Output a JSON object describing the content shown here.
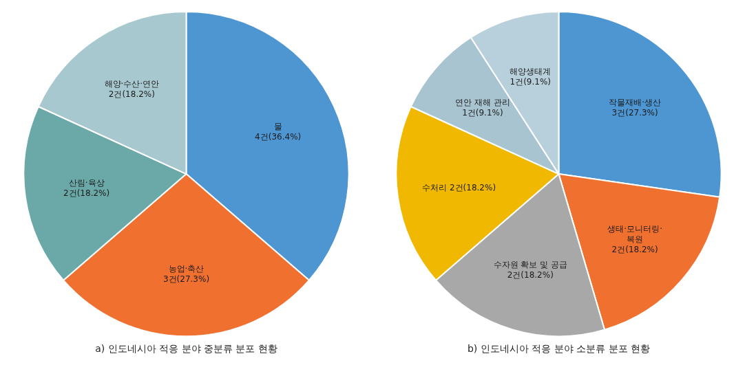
{
  "chart_data": [
    {
      "type": "pie",
      "subtitle": "a) 인도네시아 적응 분야 중분류 분포 현황",
      "categories": [
        "물\n4건(36.4%)",
        "농업·축산\n3건(27.3%)",
        "산림·육상\n2건(18.2%)",
        "해양·수산·연안\n2건(18.2%)"
      ],
      "values": [
        36.4,
        27.3,
        18.2,
        18.2
      ],
      "colors": [
        "#4D96D2",
        "#F07030",
        "#6BA8A8",
        "#A8C8D0"
      ],
      "legend": false
    },
    {
      "type": "pie",
      "subtitle": "b) 인도네시아 적응 분야 소분류 분포 현황",
      "categories": [
        "작물재배·생산\n3건(27.3%)",
        "생태·모니터링·\n복원\n2건(18.2%)",
        "수자원 확보 및 공급\n2건(18.2%)",
        "수처리 2건(18.2%)",
        "연안 재해 관리\n1건(9.1%)",
        "해양생태계\n1건(9.1%)"
      ],
      "values": [
        27.3,
        18.2,
        18.2,
        18.2,
        9.1,
        9.1
      ],
      "colors": [
        "#4D96D2",
        "#F07030",
        "#A8A8A8",
        "#F0B800",
        "#A8C4D0",
        "#B8D0DC"
      ],
      "legend": false
    }
  ]
}
